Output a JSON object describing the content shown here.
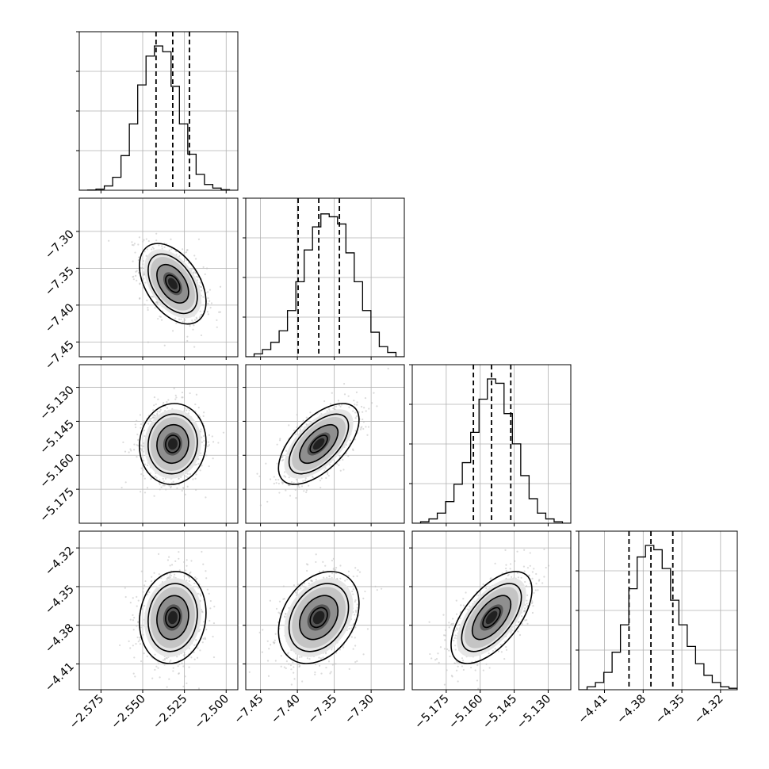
{
  "chart_data": {
    "type": "corner",
    "title": "",
    "parameters": [
      {
        "range": [
          -2.588,
          -2.493
        ],
        "ticks": [
          -2.575,
          -2.55,
          -2.525,
          -2.5
        ],
        "tick_labels": [
          "−2.575",
          "−2.550",
          "−2.525",
          "−2.500"
        ],
        "median": -2.532,
        "quantiles": [
          -2.542,
          -2.522
        ],
        "sigma": 0.0095,
        "hist_bins": [
          0.0,
          0.002,
          0.008,
          0.03,
          0.09,
          0.24,
          0.46,
          0.73,
          0.93,
          1.0,
          0.96,
          0.72,
          0.46,
          0.25,
          0.11,
          0.04,
          0.015,
          0.004,
          0.0
        ]
      },
      {
        "range": [
          -7.47,
          -7.255
        ],
        "ticks": [
          -7.45,
          -7.4,
          -7.35,
          -7.3
        ],
        "tick_labels": [
          "−7.45",
          "−7.40",
          "−7.35",
          "−7.30"
        ],
        "median": -7.371,
        "quantiles": [
          -7.399,
          -7.343
        ],
        "sigma": 0.026,
        "hist_bins": [
          0.0,
          0.02,
          0.05,
          0.1,
          0.18,
          0.32,
          0.52,
          0.74,
          0.9,
          0.99,
          0.97,
          0.92,
          0.72,
          0.52,
          0.32,
          0.17,
          0.07,
          0.03,
          0.0
        ]
      },
      {
        "range": [
          -5.19,
          -5.12
        ],
        "ticks": [
          -5.175,
          -5.16,
          -5.145,
          -5.13
        ],
        "tick_labels": [
          "−5.175",
          "−5.160",
          "−5.145",
          "−5.130"
        ],
        "median": -5.155,
        "quantiles": [
          -5.163,
          -5.1465
        ],
        "sigma": 0.0085,
        "hist_bins": [
          0.0,
          0.01,
          0.03,
          0.07,
          0.15,
          0.27,
          0.42,
          0.63,
          0.86,
          1.0,
          0.97,
          0.76,
          0.55,
          0.33,
          0.17,
          0.07,
          0.03,
          0.01,
          0.0
        ]
      },
      {
        "range": [
          -4.43,
          -4.307
        ],
        "ticks": [
          -4.41,
          -4.38,
          -4.35,
          -4.32
        ],
        "tick_labels": [
          "−4.41",
          "−4.38",
          "−4.35",
          "−4.32"
        ],
        "median": -4.374,
        "quantiles": [
          -4.391,
          -4.357
        ],
        "sigma": 0.017,
        "hist_bins": [
          0.0,
          0.02,
          0.05,
          0.12,
          0.26,
          0.45,
          0.7,
          0.92,
          1.0,
          0.97,
          0.84,
          0.62,
          0.45,
          0.3,
          0.18,
          0.1,
          0.05,
          0.02,
          0.01
        ]
      }
    ],
    "correlations": {
      "1-0": -0.45,
      "2-0": 0.05,
      "2-1": 0.6,
      "3-0": 0.1,
      "3-1": 0.3,
      "3-2": 0.6
    },
    "grid": true,
    "legend": "none",
    "xlabel": "",
    "ylabel": ""
  }
}
